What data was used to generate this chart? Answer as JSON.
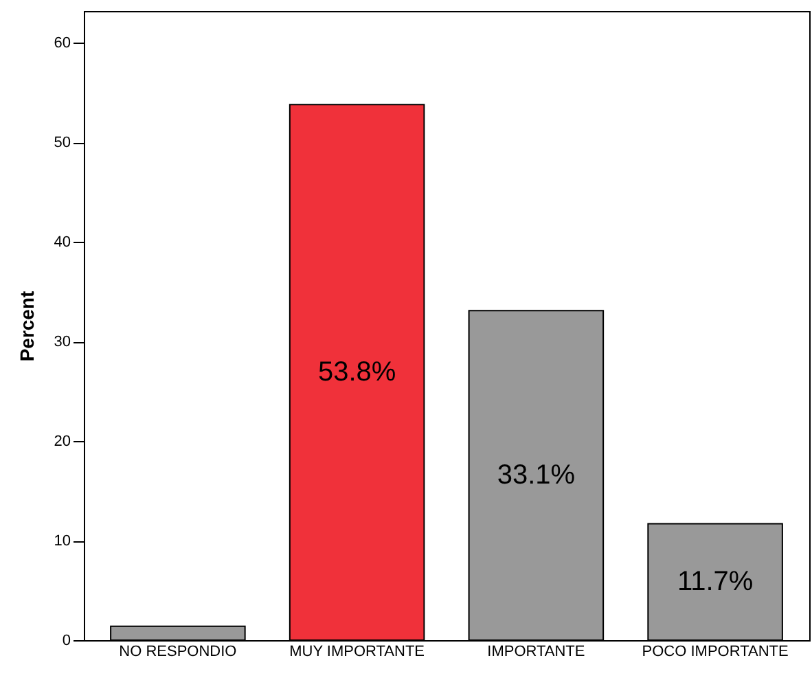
{
  "chart_data": {
    "type": "bar",
    "ylabel": "Percent",
    "categories": [
      "NO RESPONDIO",
      "MUY IMPORTANTE",
      "IMPORTANTE",
      "POCO IMPORTANTE"
    ],
    "values": [
      1.4,
      53.8,
      33.1,
      11.7
    ],
    "value_labels": [
      null,
      "53.8%",
      "33.1%",
      "11.7%"
    ],
    "colors": [
      "#999999",
      "#f0313a",
      "#999999",
      "#999999"
    ],
    "ylim": [
      0,
      63.2
    ],
    "yticks": [
      0,
      10,
      20,
      30,
      40,
      50,
      60
    ],
    "grid": false
  }
}
